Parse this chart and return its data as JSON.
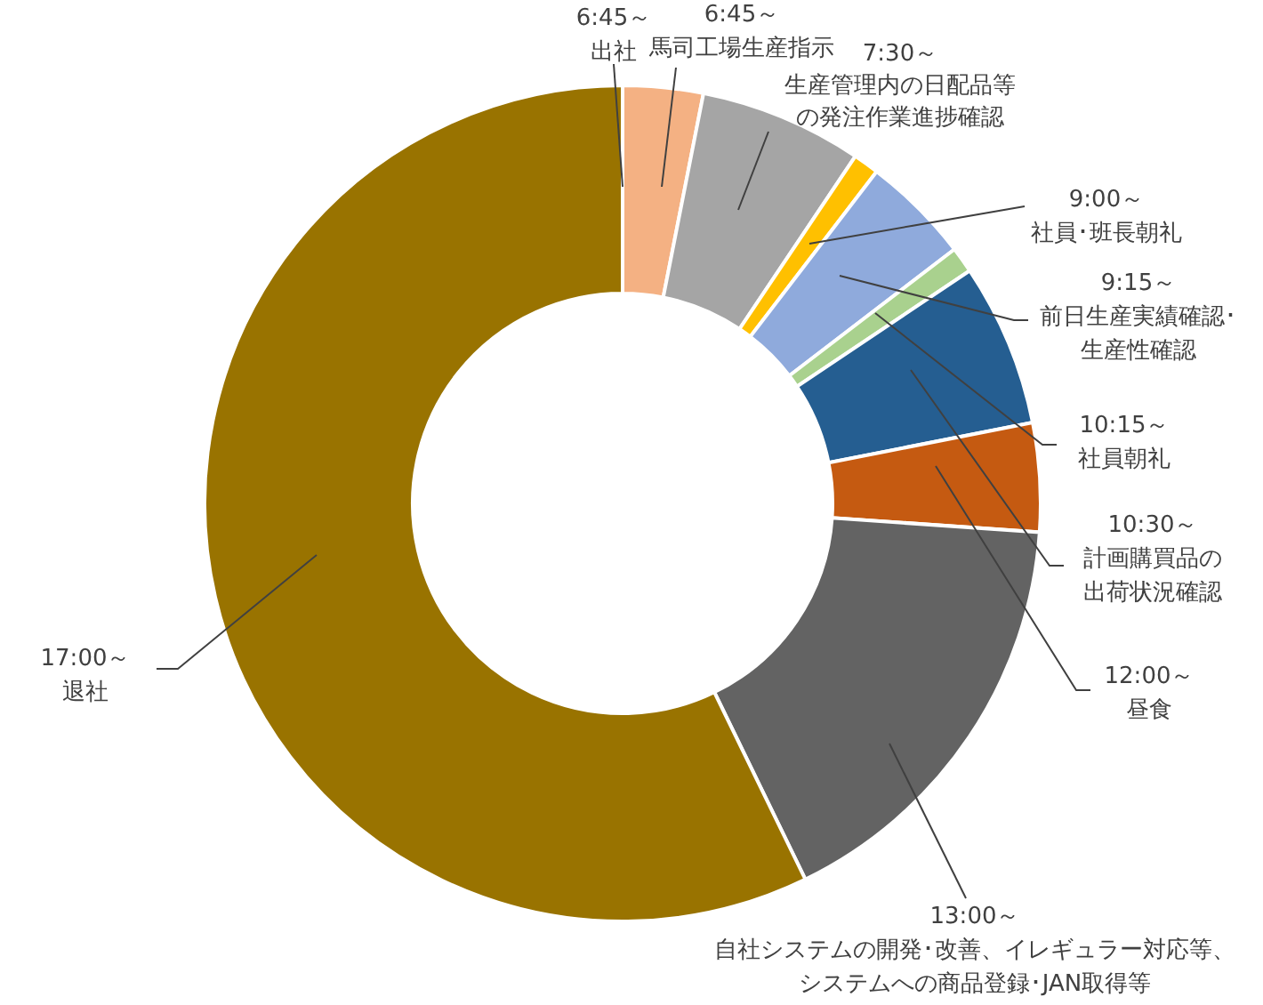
{
  "chart_data": {
    "type": "donut",
    "categories": [
      "6:45～出社",
      "6:45～馬司工場生産指示",
      "7:30～生産管理内の日配品等の発注作業進捗確認",
      "9:00～社員･班長朝礼",
      "9:15～前日生産実績確認･生産性確認",
      "10:15～社員朝礼",
      "10:30～計画購買品の出荷状況確認",
      "12:00～昼食",
      "13:00～自社システムの開発･改善、イレギュラー対応等、システムへの商品登録･JAN取得等",
      "17:00～退社"
    ],
    "values": [
      0,
      3.1,
      6.3,
      1.0,
      4.2,
      1.0,
      6.3,
      4.2,
      16.7,
      57.2
    ],
    "colors": [
      "#f4b183",
      "#f4b183",
      "#a5a5a5",
      "#ffc000",
      "#8faadc",
      "#a9d18e",
      "#255e91",
      "#c55a11",
      "#636363",
      "#997300"
    ],
    "legend": false
  }
}
